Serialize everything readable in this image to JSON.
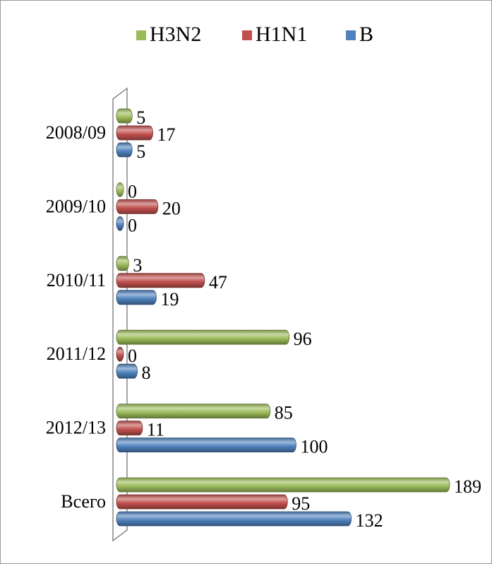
{
  "chart_data": {
    "type": "bar",
    "orientation": "horizontal",
    "categories": [
      "2008/09",
      "2009/10",
      "2010/11",
      "2011/12",
      "2012/13",
      "Всего"
    ],
    "series": [
      {
        "name": "H3N2",
        "color": "#9bbb59",
        "values": [
          5,
          0,
          3,
          96,
          85,
          189
        ]
      },
      {
        "name": "H1N1",
        "color": "#c0504d",
        "values": [
          17,
          20,
          47,
          0,
          11,
          95
        ]
      },
      {
        "name": "B",
        "color": "#4f81bd",
        "values": [
          5,
          0,
          19,
          8,
          100,
          132
        ]
      }
    ],
    "legend": "top"
  }
}
